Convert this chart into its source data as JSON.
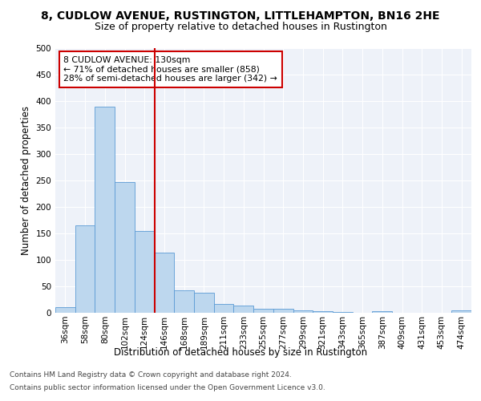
{
  "title1": "8, CUDLOW AVENUE, RUSTINGTON, LITTLEHAMPTON, BN16 2HE",
  "title2": "Size of property relative to detached houses in Rustington",
  "xlabel": "Distribution of detached houses by size in Rustington",
  "ylabel": "Number of detached properties",
  "categories": [
    "36sqm",
    "58sqm",
    "80sqm",
    "102sqm",
    "124sqm",
    "146sqm",
    "168sqm",
    "189sqm",
    "211sqm",
    "233sqm",
    "255sqm",
    "277sqm",
    "299sqm",
    "321sqm",
    "343sqm",
    "365sqm",
    "387sqm",
    "409sqm",
    "431sqm",
    "453sqm",
    "474sqm"
  ],
  "values": [
    11,
    165,
    390,
    247,
    155,
    113,
    42,
    38,
    17,
    14,
    8,
    7,
    5,
    3,
    2,
    0,
    3,
    0,
    0,
    0,
    4
  ],
  "bar_color": "#bdd7ee",
  "bar_edge_color": "#5b9bd5",
  "vline_color": "#cc0000",
  "annotation_text": "8 CUDLOW AVENUE: 130sqm\n← 71% of detached houses are smaller (858)\n28% of semi-detached houses are larger (342) →",
  "annotation_box_color": "#ffffff",
  "annotation_box_edge": "#cc0000",
  "ylim": [
    0,
    500
  ],
  "yticks": [
    0,
    50,
    100,
    150,
    200,
    250,
    300,
    350,
    400,
    450,
    500
  ],
  "footer1": "Contains HM Land Registry data © Crown copyright and database right 2024.",
  "footer2": "Contains public sector information licensed under the Open Government Licence v3.0.",
  "bg_color": "#eef2f9",
  "title1_fontsize": 10,
  "title2_fontsize": 9,
  "xlabel_fontsize": 8.5,
  "ylabel_fontsize": 8.5,
  "tick_fontsize": 7.5,
  "annotation_fontsize": 7.8,
  "footer_fontsize": 6.5
}
